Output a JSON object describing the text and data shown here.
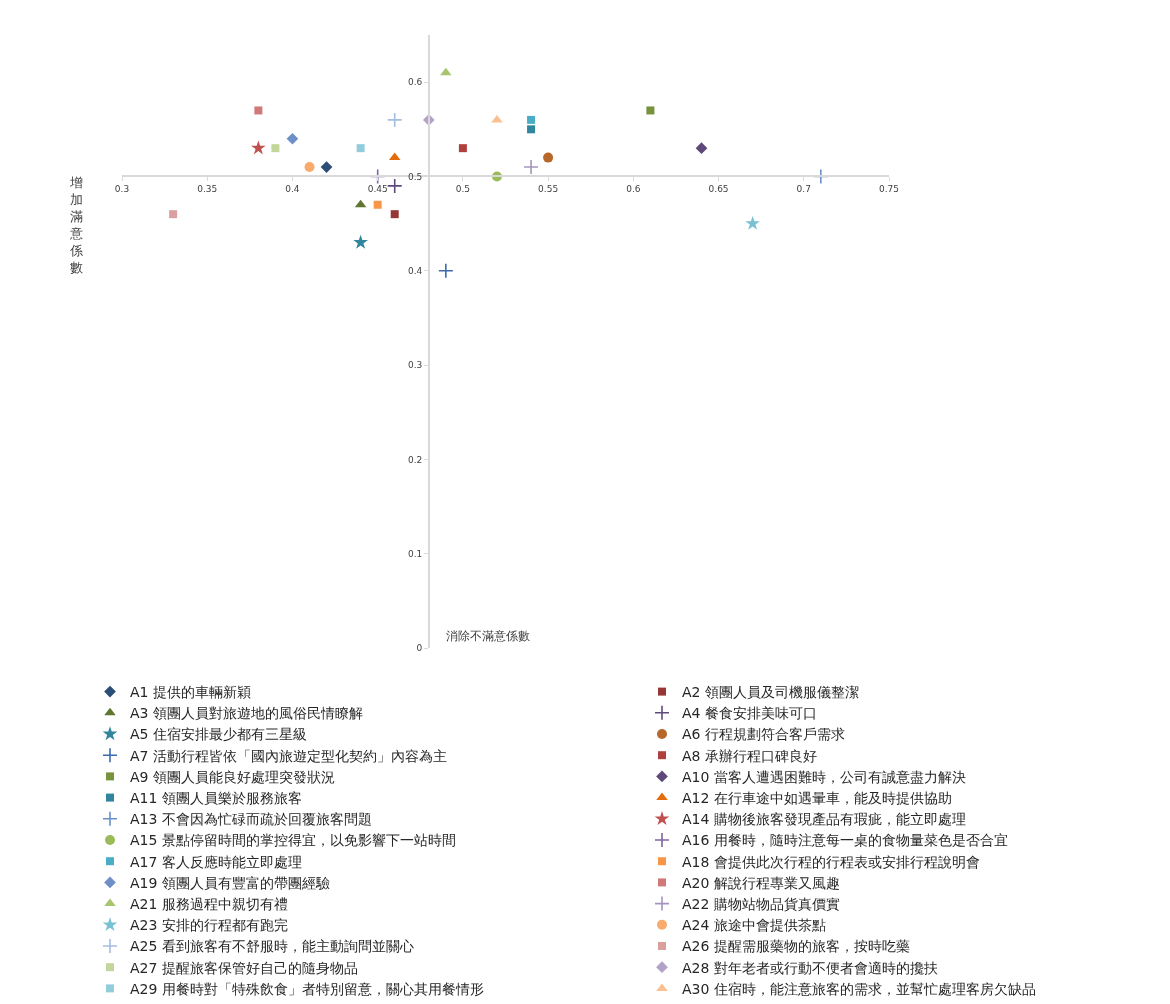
{
  "chart_data": {
    "type": "scatter",
    "xlabel": "消除不滿意係數",
    "ylabel": "增加滿意係數",
    "xlim": [
      0.3,
      0.75
    ],
    "xticks": [
      0.3,
      0.35,
      0.4,
      0.45,
      0.5,
      0.55,
      0.6,
      0.65,
      0.7,
      0.75
    ],
    "ylim": [
      0,
      0.65
    ],
    "yticks": [
      0,
      0.1,
      0.2,
      0.3,
      0.4,
      0.5,
      0.6
    ],
    "grid": false,
    "legend": "bottom",
    "series": [
      {
        "name": "A1 提供的車輛新穎",
        "color": "#2c4d75",
        "marker": "diamond",
        "x": [
          0.42
        ],
        "values": [
          0.51
        ]
      },
      {
        "name": "A2 領團人員及司機服儀整潔",
        "color": "#953735",
        "marker": "square",
        "x": [
          0.46
        ],
        "values": [
          0.46
        ]
      },
      {
        "name": "A3 領團人員對旅遊地的風俗民情瞭解",
        "color": "#5f7530",
        "marker": "triangle",
        "x": [
          0.44
        ],
        "values": [
          0.47
        ]
      },
      {
        "name": "A4 餐食安排美味可口",
        "color": "#604a7b",
        "marker": "cross",
        "x": [
          0.46
        ],
        "values": [
          0.49
        ]
      },
      {
        "name": "A5 住宿安排最少都有三星級",
        "color": "#31859c",
        "marker": "star",
        "x": [
          0.44
        ],
        "values": [
          0.43
        ]
      },
      {
        "name": "A6 行程規劃符合客戶需求",
        "color": "#b8672b",
        "marker": "circle",
        "x": [
          0.55
        ],
        "values": [
          0.52
        ]
      },
      {
        "name": "A7 活動行程皆依「國內旅遊定型化契約」內容為主",
        "color": "#3c6bb0",
        "marker": "cross",
        "x": [
          0.49
        ],
        "values": [
          0.4
        ]
      },
      {
        "name": "A8 承辦行程口碑良好",
        "color": "#b0403d",
        "marker": "square",
        "x": [
          0.5
        ],
        "values": [
          0.53
        ]
      },
      {
        "name": "A9 領團人員能良好處理突發狀況",
        "color": "#77933c",
        "marker": "square",
        "x": [
          0.61
        ],
        "values": [
          0.57
        ]
      },
      {
        "name": "A10 當客人遭遇困難時，公司有誠意盡力解決",
        "color": "#5f497a",
        "marker": "diamond",
        "x": [
          0.64
        ],
        "values": [
          0.53
        ]
      },
      {
        "name": "A11 領團人員樂於服務旅客",
        "color": "#31859c",
        "marker": "square",
        "x": [
          0.54
        ],
        "values": [
          0.55
        ]
      },
      {
        "name": "A12 在行車途中如遇暈車，能及時提供協助",
        "color": "#e46c0a",
        "marker": "triangle",
        "x": [
          0.46
        ],
        "values": [
          0.52
        ]
      },
      {
        "name": "A13 不會因為忙碌而疏於回覆旅客問題",
        "color": "#6a8fca",
        "marker": "cross",
        "x": [
          0.71
        ],
        "values": [
          0.5
        ]
      },
      {
        "name": "A14 購物後旅客發現產品有瑕疵，能立即處理",
        "color": "#c0504d",
        "marker": "star",
        "x": [
          0.38
        ],
        "values": [
          0.53
        ]
      },
      {
        "name": "A15 景點停留時間的掌控得宜，以免影響下一站時間",
        "color": "#9bbb59",
        "marker": "circle",
        "x": [
          0.52
        ],
        "values": [
          0.5
        ]
      },
      {
        "name": "A16 用餐時，隨時注意每一桌的食物量菜色是否合宜",
        "color": "#8064a2",
        "marker": "cross",
        "x": [
          0.45
        ],
        "values": [
          0.5
        ]
      },
      {
        "name": "A17 客人反應時能立即處理",
        "color": "#4bacc6",
        "marker": "square",
        "x": [
          0.54
        ],
        "values": [
          0.56
        ]
      },
      {
        "name": "A18 會提供此次行程的行程表或安排行程說明會",
        "color": "#f79646",
        "marker": "square",
        "x": [
          0.45
        ],
        "values": [
          0.47
        ]
      },
      {
        "name": "A19 領團人員有豐富的帶團經驗",
        "color": "#6f8fc9",
        "marker": "diamond",
        "x": [
          0.4
        ],
        "values": [
          0.54
        ]
      },
      {
        "name": "A20 解說行程專業又風趣",
        "color": "#d07a78",
        "marker": "square",
        "x": [
          0.38
        ],
        "values": [
          0.57
        ]
      },
      {
        "name": "A21 服務過程中親切有禮",
        "color": "#a9c46f",
        "marker": "triangle",
        "x": [
          0.49
        ],
        "values": [
          0.61
        ]
      },
      {
        "name": "A22 購物站物品貨真價實",
        "color": "#a595bd",
        "marker": "cross",
        "x": [
          0.54
        ],
        "values": [
          0.51
        ]
      },
      {
        "name": "A23 安排的行程都有跑完",
        "color": "#78c0d4",
        "marker": "star",
        "x": [
          0.67
        ],
        "values": [
          0.45
        ]
      },
      {
        "name": "A24 旅途中會提供茶點",
        "color": "#f9ab6b",
        "marker": "circle",
        "x": [
          0.41
        ],
        "values": [
          0.51
        ]
      },
      {
        "name": "A25 看到旅客有不舒服時，能主動詢問並關心",
        "color": "#a7bde0",
        "marker": "cross",
        "x": [
          0.46
        ],
        "values": [
          0.56
        ]
      },
      {
        "name": "A26 提醒需服藥物的旅客，按時吃藥",
        "color": "#d9a09e",
        "marker": "square",
        "x": [
          0.33
        ],
        "values": [
          0.46
        ]
      },
      {
        "name": "A27 提醒旅客保管好自己的隨身物品",
        "color": "#c3d69b",
        "marker": "square",
        "x": [
          0.39
        ],
        "values": [
          0.53
        ]
      },
      {
        "name": "A28 對年老者或行動不便者會適時的攙扶",
        "color": "#b3a2c7",
        "marker": "diamond",
        "x": [
          0.48
        ],
        "values": [
          0.56
        ]
      },
      {
        "name": "A29 用餐時對「特殊飲食」者特別留意，關心其用餐情形",
        "color": "#93cddd",
        "marker": "square",
        "x": [
          0.44
        ],
        "values": [
          0.53
        ]
      },
      {
        "name": "A30 住宿時，能注意旅客的需求，並幫忙處理客房欠缺品",
        "color": "#fac090",
        "marker": "triangle",
        "x": [
          0.52
        ],
        "values": [
          0.56
        ]
      }
    ]
  }
}
